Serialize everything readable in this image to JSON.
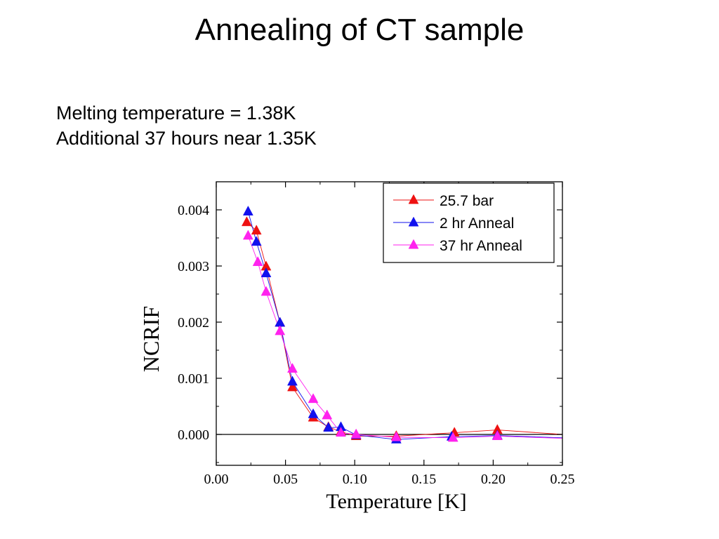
{
  "slide": {
    "title": "Annealing of CT sample",
    "lines": [
      "Melting temperature = 1.38K",
      "Additional 37 hours near 1.35K"
    ]
  },
  "chart_data": {
    "type": "line",
    "xlabel": "Temperature [K]",
    "ylabel": "NCRIF",
    "xlim": [
      0.0,
      0.25
    ],
    "ylim": [
      -0.00055,
      0.0045
    ],
    "xticks": [
      0.0,
      0.05,
      0.1,
      0.15,
      0.2,
      0.25
    ],
    "xtick_labels": [
      "0.00",
      "0.05",
      "0.10",
      "0.15",
      "0.20",
      "0.25"
    ],
    "yticks": [
      0.0,
      0.001,
      0.002,
      0.003,
      0.004
    ],
    "ytick_labels": [
      "0.000",
      "0.001",
      "0.002",
      "0.003",
      "0.004"
    ],
    "legend_position": "top-right",
    "zero_line": true,
    "series": [
      {
        "name": "25.7 bar",
        "color": "#ee1111",
        "marker": "triangle-up",
        "x": [
          0.022,
          0.029,
          0.036,
          0.046,
          0.055,
          0.07,
          0.081,
          0.09,
          0.101,
          0.13,
          0.172,
          0.203
        ],
        "y": [
          0.00378,
          0.00363,
          0.00299,
          0.00199,
          0.00084,
          0.0003,
          0.00013,
          5e-05,
          -3e-05,
          -3e-05,
          3e-05,
          8e-05
        ]
      },
      {
        "name": "2 hr Anneal",
        "color": "#1111ee",
        "marker": "triangle-up",
        "x": [
          0.023,
          0.029,
          0.036,
          0.046,
          0.055,
          0.07,
          0.081,
          0.09,
          0.101,
          0.13,
          0.17,
          0.203
        ],
        "y": [
          0.00397,
          0.00343,
          0.00287,
          0.00199,
          0.00094,
          0.00036,
          0.00012,
          0.00013,
          -1e-05,
          -9e-05,
          -4e-05,
          -2e-05
        ]
      },
      {
        "name": "37 hr Anneal",
        "color": "#ff22ee",
        "marker": "triangle-up",
        "x": [
          0.023,
          0.03,
          0.036,
          0.046,
          0.055,
          0.07,
          0.08,
          0.09,
          0.101,
          0.13,
          0.171,
          0.203
        ],
        "y": [
          0.00354,
          0.00307,
          0.00254,
          0.00184,
          0.00117,
          0.00063,
          0.00034,
          3e-05,
          0.0,
          -5e-05,
          -6e-05,
          -3e-05
        ]
      }
    ]
  }
}
